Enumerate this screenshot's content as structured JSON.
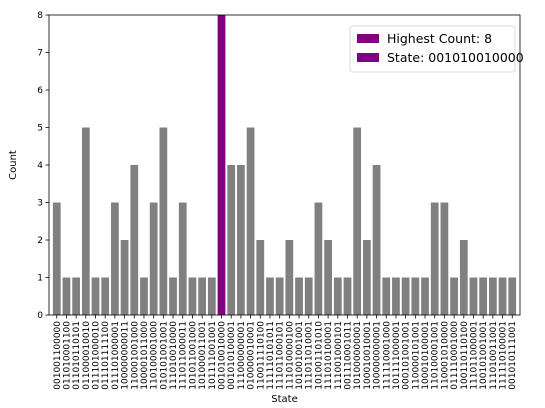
{
  "chart_data": {
    "type": "bar",
    "xlabel": "State",
    "ylabel": "Count",
    "ylim": [
      0,
      8
    ],
    "yticks": [
      0,
      1,
      2,
      3,
      4,
      5,
      6,
      7,
      8
    ],
    "categories": [
      "001001100000",
      "011010001100",
      "011010110101",
      "011000010010",
      "011101000010",
      "011101111100",
      "011101000001",
      "100000000011",
      "110001001000",
      "100001011000",
      "110100001000",
      "010101001001",
      "111010010000",
      "111011000011",
      "101011001000",
      "101000011001",
      "101111001001",
      "001010010000",
      "001010100001",
      "111000000001",
      "010000010001",
      "110011110100",
      "111110101011",
      "111011000101",
      "111010000100",
      "101001001001",
      "111011010001",
      "101001101010",
      "111010100001",
      "111001000101",
      "001110001011",
      "101000000001",
      "100010010001",
      "100000000001",
      "111110001000",
      "101111000001",
      "000101001001",
      "110000101001",
      "100010100001",
      "110100001001",
      "110001010000",
      "011110001000",
      "100110110100",
      "111011000001",
      "100101001001",
      "111010011001",
      "111110100001",
      "001010111001"
    ],
    "values": [
      3,
      1,
      1,
      5,
      1,
      1,
      3,
      2,
      4,
      1,
      3,
      5,
      1,
      3,
      1,
      1,
      1,
      8,
      4,
      4,
      5,
      2,
      1,
      1,
      2,
      1,
      1,
      3,
      2,
      1,
      1,
      5,
      2,
      4,
      1,
      1,
      1,
      1,
      1,
      3,
      3,
      1,
      2,
      1,
      1,
      1,
      1,
      1
    ],
    "highlight_index": 17,
    "colors": {
      "bar": "#808080",
      "highlight": "#800080"
    },
    "legend": {
      "position": "top-right",
      "entries": [
        {
          "label": "Highest Count: 8",
          "color": "#800080"
        },
        {
          "label": "State: 001010010000",
          "color": "#800080"
        }
      ]
    },
    "grid": false
  }
}
